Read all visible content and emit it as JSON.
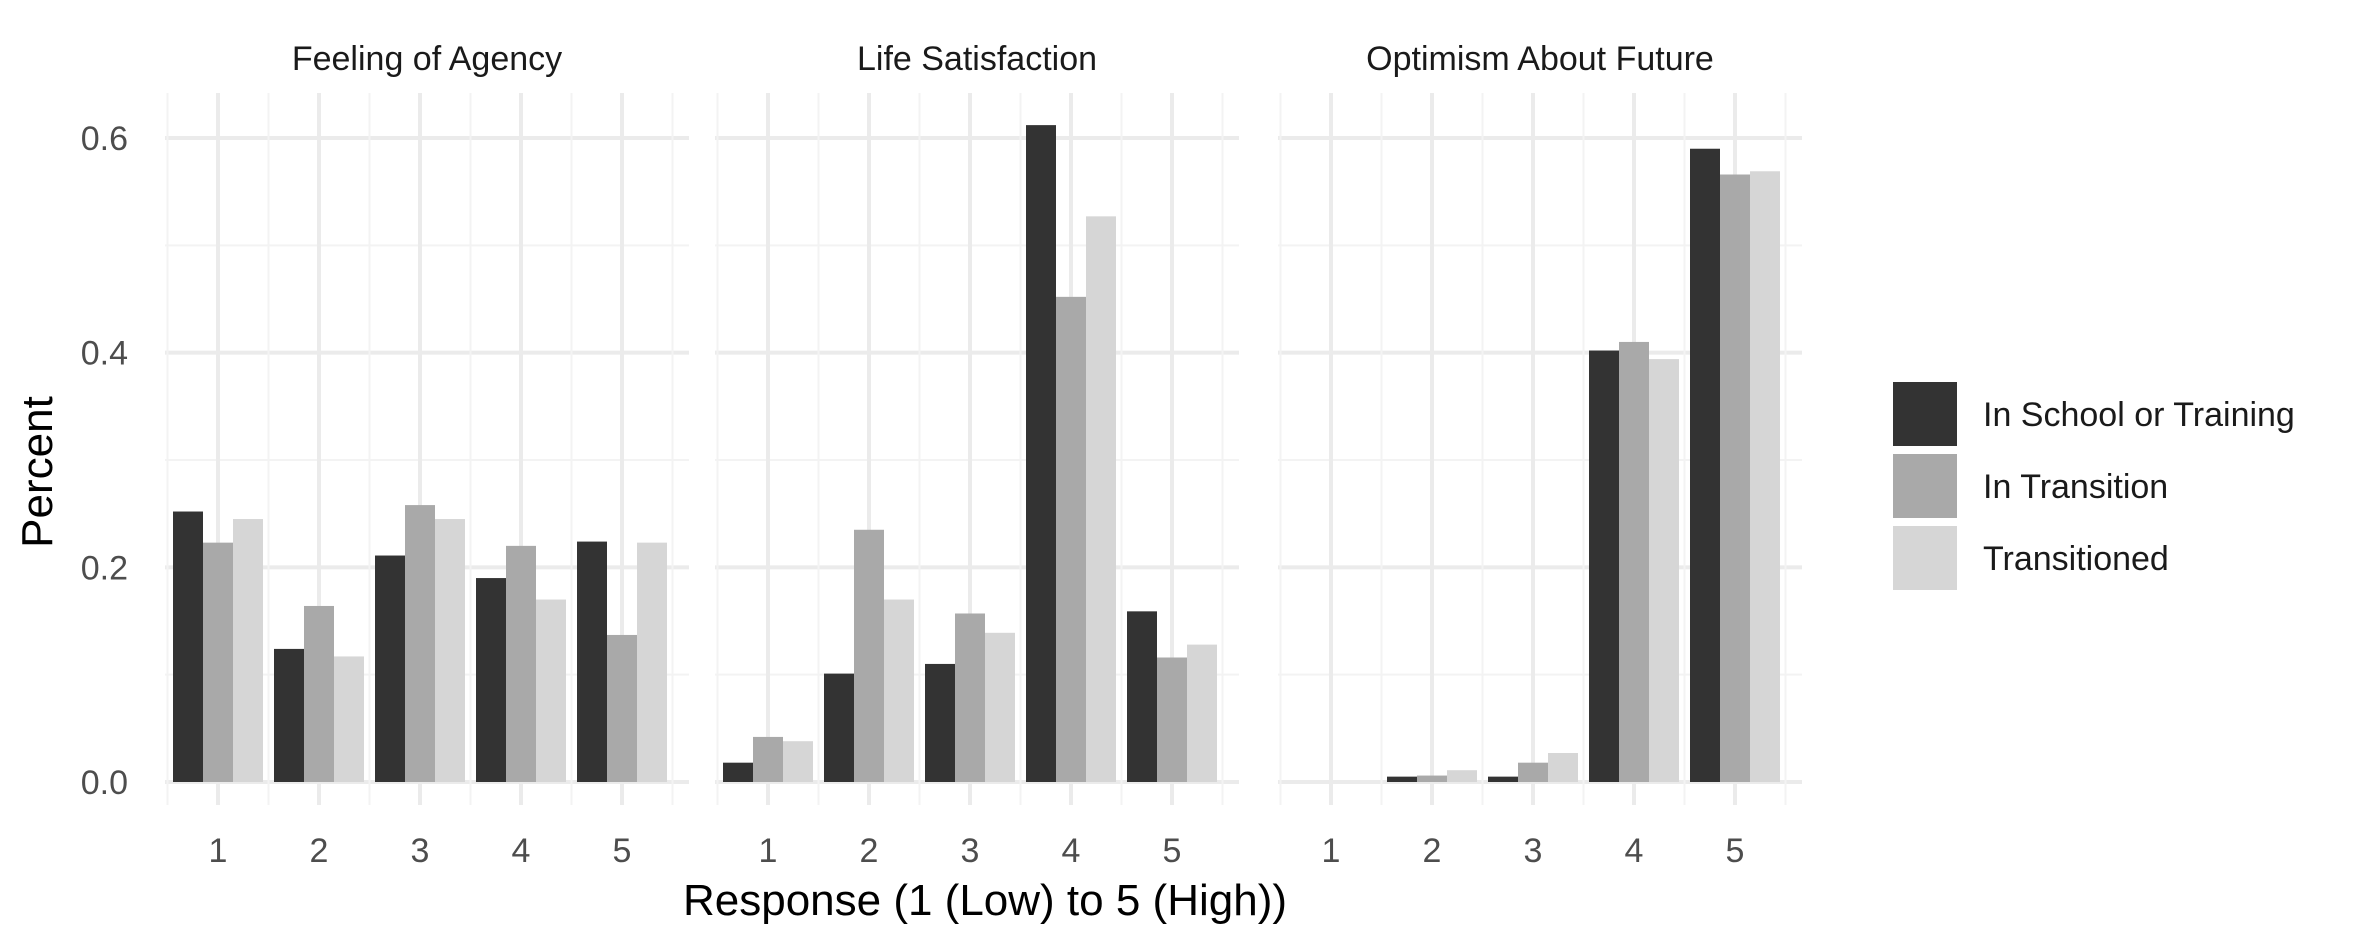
{
  "chart_data": {
    "type": "bar",
    "xlabel": "Response (1 (Low) to 5 (High))",
    "ylabel": "Percent",
    "ylim": [
      0,
      0.64
    ],
    "yticks": [
      0.0,
      0.2,
      0.4,
      0.6
    ],
    "ytick_labels": [
      "0.0",
      "0.2",
      "0.4",
      "0.6"
    ],
    "categories": [
      "1",
      "2",
      "3",
      "4",
      "5"
    ],
    "grid": true,
    "legend_position": "right",
    "series_names": [
      "In School or Training",
      "In Transition",
      "Transitioned"
    ],
    "colors": {
      "In School or Training": "#333333",
      "In Transition": "#a9a9a9",
      "Transitioned": "#d6d6d6"
    },
    "panels": [
      {
        "title": "Feeling of Agency",
        "series": [
          {
            "name": "In School or Training",
            "values": [
              0.252,
              0.124,
              0.211,
              0.19,
              0.224
            ]
          },
          {
            "name": "In Transition",
            "values": [
              0.223,
              0.164,
              0.258,
              0.22,
              0.137
            ]
          },
          {
            "name": "Transitioned",
            "values": [
              0.245,
              0.117,
              0.245,
              0.17,
              0.223
            ]
          }
        ]
      },
      {
        "title": "Life Satisfaction",
        "series": [
          {
            "name": "In School or Training",
            "values": [
              0.018,
              0.101,
              0.11,
              0.612,
              0.159
            ]
          },
          {
            "name": "In Transition",
            "values": [
              0.042,
              0.235,
              0.157,
              0.452,
              0.116
            ]
          },
          {
            "name": "Transitioned",
            "values": [
              0.038,
              0.17,
              0.139,
              0.527,
              0.128
            ]
          }
        ]
      },
      {
        "title": "Optimism About Future",
        "series": [
          {
            "name": "In School or Training",
            "values": [
              0.0,
              0.005,
              0.005,
              0.402,
              0.59
            ]
          },
          {
            "name": "In Transition",
            "values": [
              0.0,
              0.006,
              0.018,
              0.41,
              0.566
            ]
          },
          {
            "name": "Transitioned",
            "values": [
              0.0,
              0.011,
              0.027,
              0.394,
              0.569
            ]
          }
        ]
      }
    ]
  }
}
